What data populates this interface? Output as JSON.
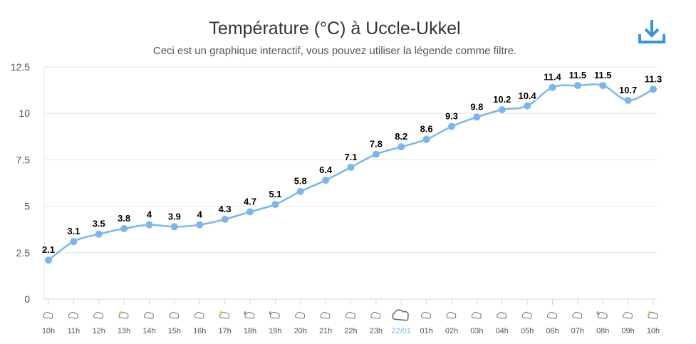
{
  "chart_data": {
    "type": "line",
    "title": "Température (°C) à Uccle-Ukkel",
    "subtitle": "Ceci est un graphique interactif, vous pouvez utiliser la légende comme filtre.",
    "categories": [
      "10h",
      "11h",
      "12h",
      "13h",
      "14h",
      "15h",
      "16h",
      "17h",
      "18h",
      "19h",
      "20h",
      "21h",
      "22h",
      "23h",
      "22/01",
      "01h",
      "02h",
      "03h",
      "04h",
      "05h",
      "06h",
      "07h",
      "08h",
      "09h",
      "10h"
    ],
    "icons": [
      "cloud",
      "cloud",
      "cloud",
      "cloud-sun",
      "cloud",
      "cloud",
      "cloud",
      "cloud-sun",
      "cloud-moon",
      "cloud-moon",
      "cloud",
      "cloud",
      "cloud",
      "cloud",
      "cloud-large",
      "cloud",
      "cloud",
      "cloud",
      "cloud",
      "cloud",
      "cloud",
      "cloud",
      "cloud-moon",
      "cloud",
      "cloud-sun"
    ],
    "values": [
      2.1,
      3.1,
      3.5,
      3.8,
      4,
      3.9,
      4,
      4.3,
      4.7,
      5.1,
      5.8,
      6.4,
      7.1,
      7.8,
      8.2,
      8.6,
      9.3,
      9.8,
      10.2,
      10.4,
      11.4,
      11.5,
      11.5,
      10.7,
      11.3
    ],
    "ylim": [
      0,
      12.5
    ],
    "yticks": [
      "0",
      "2.5",
      "5",
      "7.5",
      "10",
      "12.5"
    ],
    "ytick_values": [
      0,
      2.5,
      5,
      7.5,
      10,
      12.5
    ],
    "grid": true,
    "colors": {
      "line": "#7cb5ec",
      "axis": "#555555",
      "date_label": "#7cb5ec"
    }
  },
  "download_icon": "download-icon"
}
